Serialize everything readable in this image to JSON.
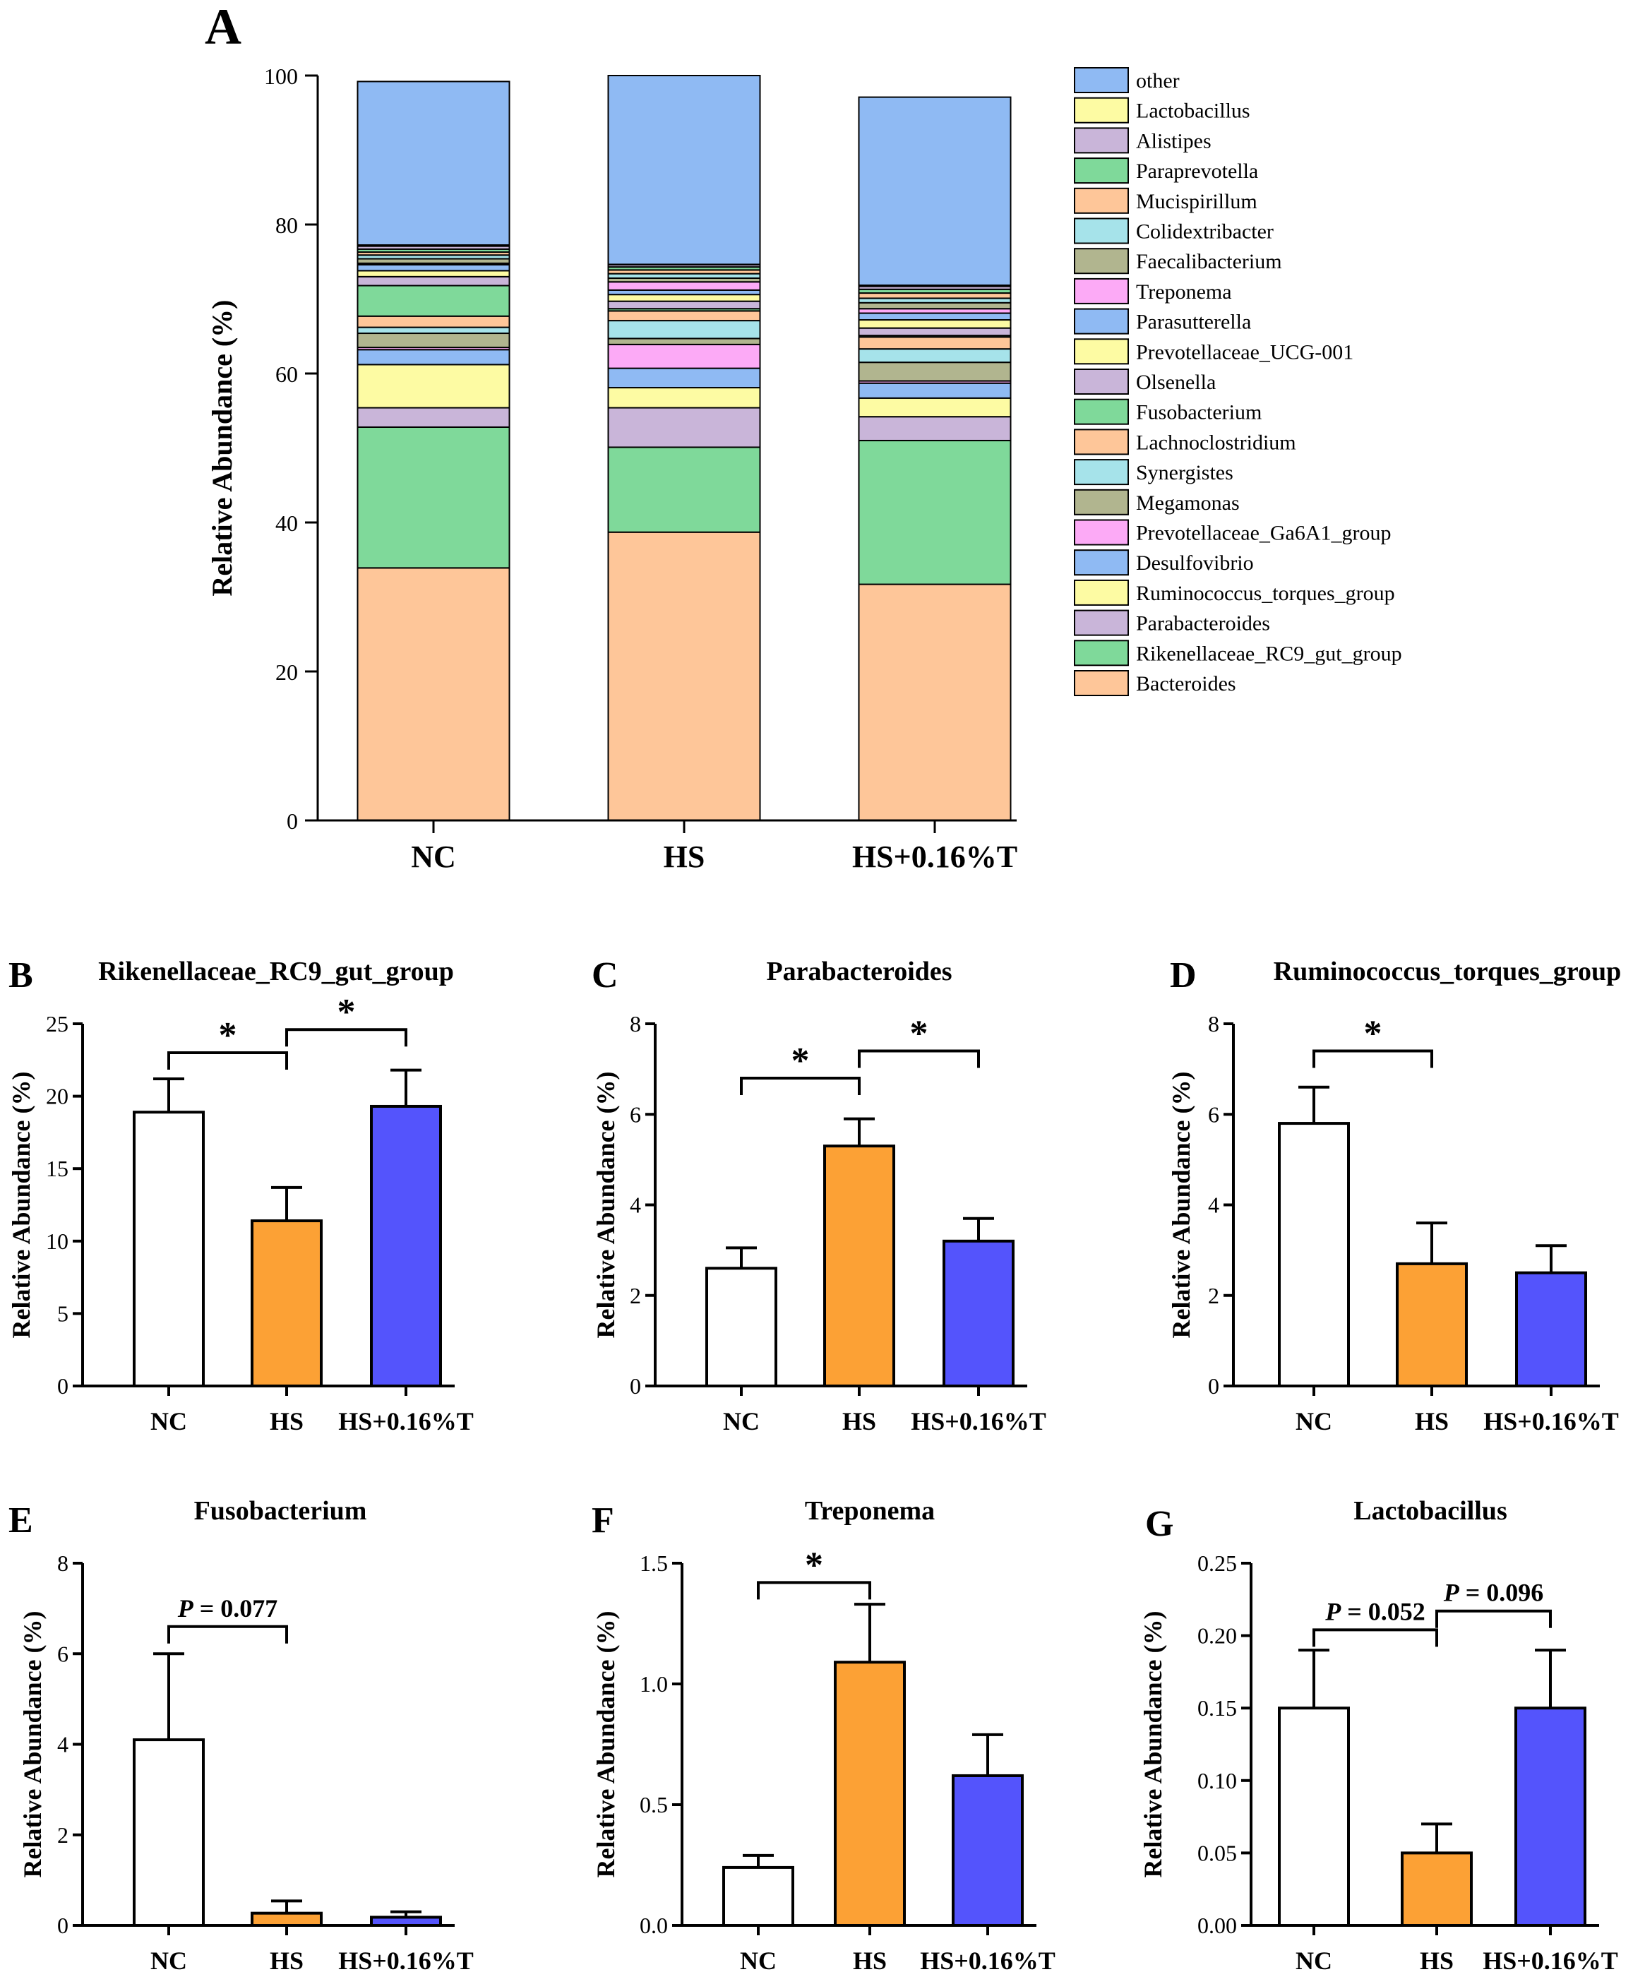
{
  "figure_label": "Figure",
  "colors": {
    "other": "#8fbaf3",
    "Lactobacillus": "#fdfba3",
    "Alistipes": "#c9b5d9",
    "Paraprevotella": "#7fd99a",
    "Mucispirillum": "#fec699",
    "Colidextribacter": "#a6e3ea",
    "Faecalibacterium": "#b1b58f",
    "Treponema": "#fcaaf6",
    "Parasutterella": "#8fbaf3",
    "Prevotellaceae_UCG-001": "#fdfba3",
    "Olsenella": "#c9b5d9",
    "Fusobacterium": "#7fd99a",
    "Lachnoclostridium": "#fec699",
    "Synergistes": "#a6e3ea",
    "Megamonas": "#b1b58f",
    "Prevotellaceae_Ga6A1_group": "#fcaaf6",
    "Desulfovibrio": "#8fbaf3",
    "Ruminococcus_torques_group": "#fdfba3",
    "Parabacteroides": "#c9b5d9",
    "Rikenellaceae_RC9_gut_group": "#7fd99a",
    "Bacteroides": "#fec699",
    "NC": "#ffffff",
    "HS": "#fca135",
    "HS+0.16%T": "#5454fc"
  },
  "chart_data": [
    {
      "id": "A",
      "label": "A",
      "type": "stacked-bar",
      "ylabel": "Relative Abundance (%)",
      "ylim": [
        0,
        100
      ],
      "yticks": [
        "0",
        "20",
        "40",
        "60",
        "80",
        "100"
      ],
      "categories": [
        "NC",
        "HS",
        "HS+0.16%T"
      ],
      "legend": [
        "other",
        "Lactobacillus",
        "Alistipes",
        "Paraprevotella",
        "Mucispirillum",
        "Colidextribacter",
        "Faecalibacterium",
        "Treponema",
        "Parasutterella",
        "Prevotellaceae_UCG-001",
        "Olsenella",
        "Fusobacterium",
        "Lachnoclostridium",
        "Synergistes",
        "Megamonas",
        "Prevotellaceae_Ga6A1_group",
        "Desulfovibrio",
        "Ruminococcus_torques_group",
        "Parabacteroides",
        "Rikenellaceae_RC9_gut_group",
        "Bacteroides"
      ],
      "series": [
        {
          "name": "Bacteroides",
          "values": [
            33.9,
            38.7,
            31.7
          ]
        },
        {
          "name": "Rikenellaceae_RC9_gut_group",
          "values": [
            18.9,
            11.4,
            19.3
          ]
        },
        {
          "name": "Parabacteroides",
          "values": [
            2.6,
            5.3,
            3.2
          ]
        },
        {
          "name": "Ruminococcus_torques_group",
          "values": [
            5.8,
            2.7,
            2.5
          ]
        },
        {
          "name": "Desulfovibrio",
          "values": [
            2.0,
            2.6,
            2.0
          ]
        },
        {
          "name": "Prevotellaceae_Ga6A1_group",
          "values": [
            0.3,
            3.2,
            0.3
          ]
        },
        {
          "name": "Megamonas",
          "values": [
            1.9,
            0.8,
            2.5
          ]
        },
        {
          "name": "Synergistes",
          "values": [
            0.8,
            2.4,
            1.8
          ]
        },
        {
          "name": "Lachnoclostridium",
          "values": [
            1.5,
            1.3,
            1.6
          ]
        },
        {
          "name": "Fusobacterium",
          "values": [
            4.1,
            0.3,
            0.2
          ]
        },
        {
          "name": "Olsenella",
          "values": [
            1.2,
            1.0,
            1.0
          ]
        },
        {
          "name": "Prevotellaceae_UCG-001",
          "values": [
            0.8,
            0.9,
            1.1
          ]
        },
        {
          "name": "Parasutterella",
          "values": [
            0.8,
            0.6,
            0.9
          ]
        },
        {
          "name": "Treponema",
          "values": [
            0.2,
            1.1,
            0.6
          ]
        },
        {
          "name": "Faecalibacterium",
          "values": [
            0.6,
            0.5,
            0.8
          ]
        },
        {
          "name": "Colidextribacter",
          "values": [
            0.5,
            0.6,
            0.6
          ]
        },
        {
          "name": "Mucispirillum",
          "values": [
            0.4,
            0.5,
            0.7
          ]
        },
        {
          "name": "Paraprevotella",
          "values": [
            0.4,
            0.4,
            0.5
          ]
        },
        {
          "name": "Alistipes",
          "values": [
            0.4,
            0.3,
            0.4
          ]
        },
        {
          "name": "Lactobacillus",
          "values": [
            0.15,
            0.05,
            0.15
          ]
        },
        {
          "name": "other",
          "values": [
            21.95,
            25.35,
            25.25
          ]
        }
      ]
    },
    {
      "id": "B",
      "label": "B",
      "type": "bar",
      "title": "Rikenellaceae_RC9_gut_group",
      "ylabel": "Relative Abundance (%)",
      "ylim": [
        0,
        25
      ],
      "yticks": [
        "0",
        "5",
        "10",
        "15",
        "20",
        "25"
      ],
      "categories": [
        "NC",
        "HS",
        "HS+0.16%T"
      ],
      "values": [
        18.9,
        11.4,
        19.3
      ],
      "errors": [
        2.3,
        2.3,
        2.5
      ],
      "annotations": [
        {
          "from": 0,
          "to": 1,
          "level": 23.0,
          "text": "*"
        },
        {
          "from": 1,
          "to": 2,
          "level": 24.6,
          "text": "*"
        }
      ]
    },
    {
      "id": "C",
      "label": "C",
      "type": "bar",
      "title": "Parabacteroides",
      "ylabel": "Relative Abundance (%)",
      "ylim": [
        0,
        8
      ],
      "yticks": [
        "0",
        "2",
        "4",
        "6",
        "8"
      ],
      "categories": [
        "NC",
        "HS",
        "HS+0.16%T"
      ],
      "values": [
        2.6,
        5.3,
        3.2
      ],
      "errors": [
        0.45,
        0.6,
        0.5
      ],
      "annotations": [
        {
          "from": 0,
          "to": 1,
          "level": 6.8,
          "text": "*"
        },
        {
          "from": 1,
          "to": 2,
          "level": 7.4,
          "text": "*"
        }
      ]
    },
    {
      "id": "D",
      "label": "D",
      "type": "bar",
      "title": "Ruminococcus_torques_group",
      "ylabel": "Relative Abundance (%)",
      "ylim": [
        0,
        8
      ],
      "yticks": [
        "0",
        "2",
        "4",
        "6",
        "8"
      ],
      "categories": [
        "NC",
        "HS",
        "HS+0.16%T"
      ],
      "values": [
        5.8,
        2.7,
        2.5
      ],
      "errors": [
        0.8,
        0.9,
        0.6
      ],
      "annotations": [
        {
          "from": 0,
          "to": 1,
          "level": 7.4,
          "text": "*"
        }
      ]
    },
    {
      "id": "E",
      "label": "E",
      "type": "bar",
      "title": "Fusobacterium",
      "ylabel": "Relative Abundance (%)",
      "ylim": [
        0,
        8
      ],
      "yticks": [
        "0",
        "2",
        "4",
        "6",
        "8"
      ],
      "categories": [
        "NC",
        "HS",
        "HS+0.16%T"
      ],
      "values": [
        4.1,
        0.27,
        0.18
      ],
      "errors": [
        1.9,
        0.27,
        0.12
      ],
      "annotations": [
        {
          "from": 0,
          "to": 1,
          "level": 6.6,
          "p_label": "P",
          "text": " = 0.077"
        }
      ]
    },
    {
      "id": "F",
      "label": "F",
      "type": "bar",
      "title": "Treponema",
      "ylabel": "Relative Abundance (%)",
      "ylim": [
        0,
        1.5
      ],
      "yticks": [
        "0.0",
        "0.5",
        "1.0",
        "1.5"
      ],
      "categories": [
        "NC",
        "HS",
        "HS+0.16%T"
      ],
      "values": [
        0.24,
        1.09,
        0.62
      ],
      "errors": [
        0.05,
        0.24,
        0.17
      ],
      "annotations": [
        {
          "from": 0,
          "to": 1,
          "level": 1.42,
          "text": "*"
        }
      ]
    },
    {
      "id": "G",
      "label": "G",
      "type": "bar",
      "title": "Lactobacillus",
      "ylabel": "Relative Abundance (%)",
      "ylim": [
        0,
        0.25
      ],
      "yticks": [
        "0.00",
        "0.05",
        "0.10",
        "0.15",
        "0.20",
        "0.25"
      ],
      "categories": [
        "NC",
        "HS",
        "HS+0.16%T"
      ],
      "values": [
        0.15,
        0.05,
        0.15
      ],
      "errors": [
        0.04,
        0.02,
        0.04
      ],
      "annotations": [
        {
          "from": 0,
          "to": 1,
          "level": 0.204,
          "p_label": "P",
          "text": " = 0.052"
        },
        {
          "from": 1,
          "to": 2,
          "level": 0.217,
          "p_label": "P",
          "text": " = 0.096"
        }
      ]
    }
  ]
}
